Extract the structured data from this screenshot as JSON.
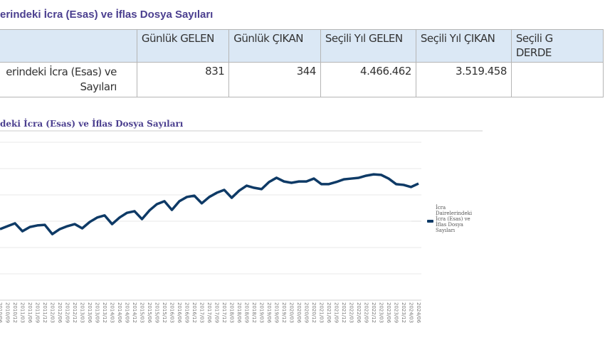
{
  "title": "erindeki İcra (Esas) ve İflas Dosya Sayıları",
  "table": {
    "headers": [
      "",
      "Günlük GELEN",
      "Günlük ÇIKAN",
      "Seçili Yıl GELEN",
      "Seçili Yıl ÇIKAN",
      "Seçili G\nDERDE"
    ],
    "row": {
      "label": "erindeki İcra (Esas) ve\n Sayıları",
      "values": [
        "831",
        "344",
        "4.466.462",
        "3.519.458",
        ""
      ]
    }
  },
  "chart_data": {
    "type": "line",
    "title": "deki İcra (Esas) ve İflas Dosya Sayıları",
    "xlabel": "",
    "ylabel": "",
    "ylim": [
      0,
      6
    ],
    "grid": true,
    "legend_position": "right",
    "color": "#0e3a66",
    "categories": [
      "2010/06",
      "2010/09",
      "2010/12",
      "2011/03",
      "2011/06",
      "2011/09",
      "2011/12",
      "2012/03",
      "2012/06",
      "2012/09",
      "2012/12",
      "2013/03",
      "2013/06",
      "2013/09",
      "2013/12",
      "2014/03",
      "2014/06",
      "2014/09",
      "2014/12",
      "2015/03",
      "2015/06",
      "2015/09",
      "2015/12",
      "2016/03",
      "2016/06",
      "2016/09",
      "2016/12",
      "2017/03",
      "2017/06",
      "2017/09",
      "2017/12",
      "2018/03",
      "2018/06",
      "2018/09",
      "2018/12",
      "2019/03",
      "2019/06",
      "2019/09",
      "2019/12",
      "2020/03",
      "2020/06",
      "2020/09",
      "2020/12",
      "2021/03",
      "2021/06",
      "2021/09",
      "2021/12",
      "2022/03",
      "2022/06",
      "2022/09",
      "2022/12",
      "2023/03",
      "2023/06",
      "2023/09",
      "2023/12",
      "2024/03",
      "2024/06"
    ],
    "series": [
      {
        "name": "İcra Dairelerindeki İcra (Esas) ve İflas Dosya Sayıları",
        "values": [
          2.7,
          2.81,
          2.92,
          2.62,
          2.78,
          2.84,
          2.86,
          2.51,
          2.7,
          2.81,
          2.89,
          2.73,
          2.97,
          3.14,
          3.22,
          2.89,
          3.14,
          3.32,
          3.38,
          3.08,
          3.41,
          3.65,
          3.76,
          3.43,
          3.76,
          3.92,
          3.97,
          3.68,
          3.92,
          4.08,
          4.19,
          3.89,
          4.16,
          4.35,
          4.27,
          4.22,
          4.49,
          4.65,
          4.51,
          4.46,
          4.51,
          4.51,
          4.62,
          4.41,
          4.41,
          4.49,
          4.59,
          4.62,
          4.65,
          4.73,
          4.78,
          4.76,
          4.62,
          4.41,
          4.38,
          4.3,
          4.43
        ]
      }
    ],
    "legend": [
      "İcra",
      "Dairelerindeki",
      "İcra (Esas) ve",
      "İflas Dosya",
      "Sayıları"
    ]
  }
}
